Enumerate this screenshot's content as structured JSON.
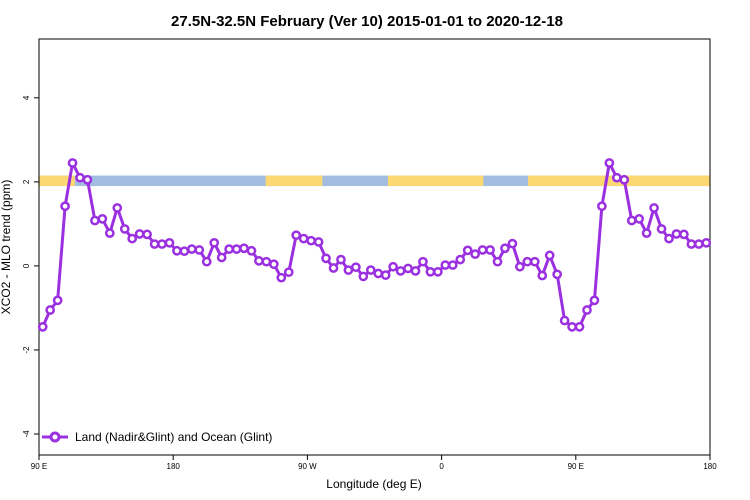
{
  "chart_data": {
    "type": "line",
    "title": "27.5N-32.5N February (Ver 10)   2015-01-01 to 2020-12-18",
    "xlabel": "Longitude (deg E)",
    "ylabel": "XCO2 - MLO trend (ppm)",
    "xlim": [
      90,
      540
    ],
    "ylim": [
      -4.5,
      5.4
    ],
    "x_ticks": [
      {
        "value": 90,
        "label": "90 E"
      },
      {
        "value": 180,
        "label": "180"
      },
      {
        "value": 270,
        "label": "90 W"
      },
      {
        "value": 360,
        "label": "0"
      },
      {
        "value": 450,
        "label": "90 E"
      },
      {
        "value": 540,
        "label": "180"
      }
    ],
    "y_ticks": [
      {
        "value": -4,
        "label": "-4"
      },
      {
        "value": -2,
        "label": "-2"
      },
      {
        "value": 0,
        "label": "0"
      },
      {
        "value": 2,
        "label": "2"
      },
      {
        "value": 4,
        "label": "4"
      }
    ],
    "land_ocean_band": {
      "y_range": [
        1.9,
        2.15
      ],
      "ocean_color": "#a3bde0",
      "land_color": "#fcd873",
      "land_segments": [
        [
          90,
          114
        ],
        [
          242,
          280
        ],
        [
          324,
          388
        ],
        [
          418,
          540
        ]
      ]
    },
    "series": [
      {
        "name": "Land (Nadir&Glint) and Ocean (Glint)",
        "color": "#9b30e0",
        "x": [
          92.5,
          97.5,
          102.5,
          107.5,
          112.5,
          117.5,
          122.5,
          127.5,
          132.5,
          137.5,
          142.5,
          147.5,
          152.5,
          157.5,
          162.5,
          167.5,
          172.5,
          177.5,
          182.5,
          187.5,
          192.5,
          197.5,
          202.5,
          207.5,
          212.5,
          217.5,
          222.5,
          227.5,
          232.5,
          237.5,
          242.5,
          247.5,
          252.5,
          257.5,
          262.5,
          267.5,
          272.5,
          277.5,
          282.5,
          287.5,
          292.5,
          297.5,
          302.5,
          307.5,
          312.5,
          317.5,
          322.5,
          327.5,
          332.5,
          337.5,
          342.5,
          347.5,
          352.5,
          357.5,
          362.5,
          367.5,
          372.5,
          377.5,
          382.5,
          387.5,
          392.5,
          397.5,
          402.5,
          407.5,
          412.5,
          417.5,
          422.5,
          427.5,
          432.5,
          437.5,
          442.5,
          447.5,
          452.5,
          457.5,
          462.5,
          467.5,
          472.5,
          477.5,
          482.5,
          487.5,
          492.5,
          497.5,
          502.5,
          507.5,
          512.5,
          517.5,
          522.5,
          527.5,
          532.5,
          537.5
        ],
        "y": [
          -1.45,
          -1.05,
          -0.82,
          1.42,
          2.45,
          2.1,
          2.05,
          1.08,
          1.12,
          0.78,
          1.38,
          0.88,
          0.65,
          0.76,
          0.75,
          0.52,
          0.52,
          0.55,
          0.36,
          0.35,
          0.4,
          0.38,
          0.1,
          0.55,
          0.2,
          0.4,
          0.4,
          0.42,
          0.36,
          0.12,
          0.1,
          0.04,
          -0.28,
          -0.15,
          0.73,
          0.65,
          0.6,
          0.57,
          0.18,
          -0.05,
          0.15,
          -0.1,
          -0.03,
          -0.25,
          -0.1,
          -0.18,
          -0.22,
          -0.02,
          -0.12,
          -0.06,
          -0.12,
          0.1,
          -0.14,
          -0.14,
          0.02,
          0.02,
          0.15,
          0.37,
          0.28,
          0.38,
          0.38,
          0.1,
          0.42,
          0.53,
          -0.02,
          0.1,
          0.1,
          -0.23,
          0.25,
          -0.2,
          -1.3,
          -1.45,
          -1.45,
          -1.05,
          -0.82,
          1.42,
          2.45,
          2.1,
          2.05,
          1.08,
          1.12,
          0.78,
          1.38,
          0.88,
          0.65,
          0.76,
          0.75,
          0.52,
          0.52,
          0.55
        ]
      }
    ],
    "legend": {
      "position": "bottom-left",
      "label": "Land (Nadir&Glint) and Ocean (Glint)"
    },
    "grid": false
  }
}
